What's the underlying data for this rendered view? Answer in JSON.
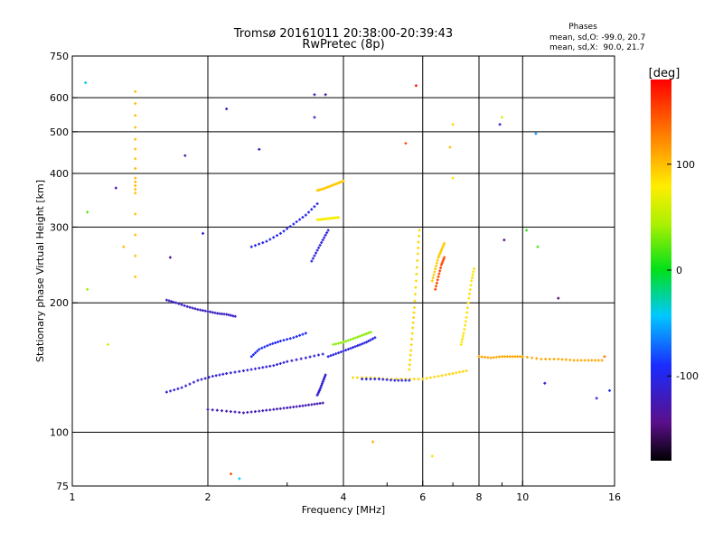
{
  "chart_data": {
    "type": "scatter",
    "title": "Tromsø 20161011 20:38:00-20:39:43",
    "subtitle": "RwPretec (8p)",
    "xlabel": "Frequency [MHz]",
    "ylabel": "Stationary phase Virtual Height [km]",
    "x_scale": "log",
    "y_scale": "log",
    "xlim": [
      1,
      16
    ],
    "ylim": [
      75,
      750
    ],
    "grid": true,
    "x_ticks": [
      1,
      2,
      4,
      6,
      8,
      10,
      16
    ],
    "x_minor_ticks": [
      3,
      5,
      7,
      9
    ],
    "x_gridlines": [
      2,
      4,
      6,
      8,
      10
    ],
    "y_ticks": [
      75,
      100,
      200,
      300,
      400,
      500,
      600,
      750
    ],
    "y_gridlines": [
      100,
      200,
      300,
      400,
      500,
      600
    ],
    "phases_legend": {
      "heading": "Phases",
      "line1": "mean, sd,O: -99.0, 20.7",
      "line2": "mean, sd,X:  90.0, 21.7"
    },
    "colorbar": {
      "label": "[deg]",
      "min": -180,
      "max": 180,
      "ticks": [
        -100,
        0,
        100
      ]
    },
    "traces": [
      {
        "x": [
          1.62,
          1.7,
          1.8,
          1.9,
          2.0,
          2.1,
          2.2,
          2.3
        ],
        "y": [
          203,
          200,
          196,
          193,
          191,
          189,
          188,
          186
        ],
        "phase": -118
      },
      {
        "x": [
          1.62,
          1.75,
          1.9,
          2.05,
          2.2,
          2.4,
          2.6,
          2.8,
          3.0,
          3.3,
          3.6
        ],
        "y": [
          124,
          127,
          132,
          135,
          137,
          139,
          141,
          143,
          146,
          149,
          152
        ],
        "phase": -110
      },
      {
        "x": [
          2.0,
          2.2,
          2.4,
          2.6,
          2.8,
          3.0,
          3.2,
          3.4,
          3.6
        ],
        "y": [
          113,
          112,
          111,
          112,
          113,
          114,
          115,
          116,
          117
        ],
        "phase": -125
      },
      {
        "x": [
          2.5,
          2.6,
          2.75,
          2.9,
          3.1,
          3.3
        ],
        "y": [
          150,
          156,
          160,
          163,
          166,
          170
        ],
        "phase": -95
      },
      {
        "x": [
          2.5,
          2.7,
          2.9,
          3.1,
          3.3,
          3.5
        ],
        "y": [
          270,
          278,
          290,
          305,
          320,
          340
        ],
        "phase": -100
      },
      {
        "x": [
          3.4,
          3.5,
          3.6,
          3.7
        ],
        "y": [
          250,
          265,
          280,
          295
        ],
        "phase": -105
      },
      {
        "x": [
          3.5,
          3.6,
          3.7,
          3.8,
          3.9,
          4.0
        ],
        "y": [
          365,
          368,
          372,
          376,
          380,
          384
        ],
        "phase": 95
      },
      {
        "x": [
          3.5,
          3.6,
          3.7,
          3.8,
          3.9
        ],
        "y": [
          312,
          313,
          314,
          315,
          316
        ],
        "phase": 75
      },
      {
        "x": [
          3.5,
          3.55,
          3.6,
          3.65
        ],
        "y": [
          122,
          126,
          131,
          136
        ],
        "phase": -110
      },
      {
        "x": [
          3.7,
          3.9,
          4.1,
          4.3,
          4.5,
          4.7
        ],
        "y": [
          150,
          153,
          156,
          159,
          162,
          166
        ],
        "phase": -105
      },
      {
        "x": [
          3.8,
          4.0,
          4.2,
          4.4,
          4.6
        ],
        "y": [
          160,
          162,
          165,
          168,
          171
        ],
        "phase": 35
      },
      {
        "x": [
          4.2,
          4.6,
          5.0,
          5.5,
          6.0,
          6.5,
          7.0,
          7.5
        ],
        "y": [
          134,
          134,
          133,
          133,
          133,
          135,
          137,
          139
        ],
        "phase": 90
      },
      {
        "x": [
          4.4,
          4.8,
          5.2,
          5.6
        ],
        "y": [
          133,
          133,
          132,
          132
        ],
        "phase": -100
      },
      {
        "x": [
          5.6,
          5.65,
          5.7,
          5.75,
          5.8,
          5.85,
          5.9
        ],
        "y": [
          140,
          155,
          175,
          195,
          225,
          260,
          295
        ],
        "phase": 90
      },
      {
        "x": [
          6.3,
          6.4,
          6.5,
          6.6,
          6.7
        ],
        "y": [
          225,
          240,
          255,
          265,
          275
        ],
        "phase": 95
      },
      {
        "x": [
          6.4,
          6.5,
          6.6,
          6.7
        ],
        "y": [
          215,
          230,
          245,
          255
        ],
        "phase": 150
      },
      {
        "x": [
          7.3,
          7.4,
          7.5,
          7.6,
          7.7,
          7.8
        ],
        "y": [
          160,
          170,
          185,
          205,
          225,
          240
        ],
        "phase": 85
      },
      {
        "x": [
          8.0,
          8.5,
          9.0,
          9.5,
          10.0,
          11.0,
          12.0,
          13.0,
          14.0,
          15.0
        ],
        "y": [
          150,
          149,
          150,
          150,
          150,
          148,
          148,
          147,
          147,
          147
        ],
        "phase": 110
      },
      {
        "x": [
          1.38,
          1.38,
          1.38,
          1.38,
          1.38
        ],
        "y": [
          620,
          480,
          390,
          360,
          230
        ],
        "phase": 100
      }
    ],
    "points": [
      {
        "x": 1.07,
        "y": 650,
        "phase": -40
      },
      {
        "x": 1.08,
        "y": 325,
        "phase": 20
      },
      {
        "x": 1.08,
        "y": 215,
        "phase": 40
      },
      {
        "x": 1.2,
        "y": 160,
        "phase": 60
      },
      {
        "x": 1.25,
        "y": 370,
        "phase": -130
      },
      {
        "x": 1.3,
        "y": 270,
        "phase": 100
      },
      {
        "x": 1.65,
        "y": 255,
        "phase": -150
      },
      {
        "x": 1.78,
        "y": 440,
        "phase": -130
      },
      {
        "x": 1.95,
        "y": 290,
        "phase": -110
      },
      {
        "x": 2.2,
        "y": 565,
        "phase": -120
      },
      {
        "x": 2.6,
        "y": 455,
        "phase": -120
      },
      {
        "x": 2.25,
        "y": 80,
        "phase": 150
      },
      {
        "x": 2.35,
        "y": 78,
        "phase": -40
      },
      {
        "x": 3.45,
        "y": 610,
        "phase": -120
      },
      {
        "x": 3.65,
        "y": 610,
        "phase": -130
      },
      {
        "x": 3.45,
        "y": 540,
        "phase": -110
      },
      {
        "x": 4.65,
        "y": 95,
        "phase": 110
      },
      {
        "x": 5.5,
        "y": 470,
        "phase": 150
      },
      {
        "x": 5.8,
        "y": 640,
        "phase": 175
      },
      {
        "x": 6.3,
        "y": 88,
        "phase": 85
      },
      {
        "x": 6.9,
        "y": 460,
        "phase": 100
      },
      {
        "x": 7.0,
        "y": 520,
        "phase": 90
      },
      {
        "x": 7.0,
        "y": 390,
        "phase": 85
      },
      {
        "x": 8.9,
        "y": 520,
        "phase": -120
      },
      {
        "x": 9.0,
        "y": 540,
        "phase": 60
      },
      {
        "x": 9.1,
        "y": 280,
        "phase": -140
      },
      {
        "x": 10.2,
        "y": 295,
        "phase": 10
      },
      {
        "x": 10.7,
        "y": 495,
        "phase": -60
      },
      {
        "x": 10.8,
        "y": 270,
        "phase": 20
      },
      {
        "x": 11.2,
        "y": 130,
        "phase": -110
      },
      {
        "x": 12.0,
        "y": 205,
        "phase": -150
      },
      {
        "x": 14.6,
        "y": 120,
        "phase": -110
      },
      {
        "x": 15.2,
        "y": 150,
        "phase": 130
      },
      {
        "x": 15.6,
        "y": 125,
        "phase": -100
      }
    ]
  }
}
